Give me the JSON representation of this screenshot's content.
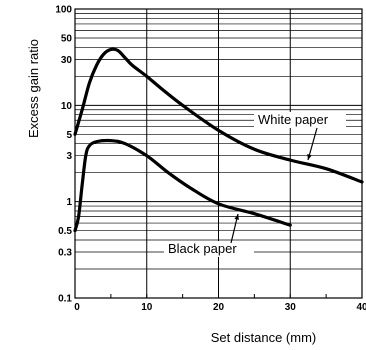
{
  "chart_data": {
    "type": "line",
    "xlabel": "Set distance (mm)",
    "ylabel": "Excess gain ratio",
    "xlim": [
      0,
      40
    ],
    "ylim": [
      0.1,
      100
    ],
    "yscale": "log",
    "grid": true,
    "x_ticks": [
      0,
      10,
      20,
      30,
      40
    ],
    "x_tick_labels": [
      "0",
      "10",
      "20",
      "30",
      "40"
    ],
    "y_ticks": [
      0.1,
      0.3,
      0.5,
      1,
      3,
      5,
      10,
      30,
      50,
      100
    ],
    "y_tick_labels": [
      "0.1",
      "0.3",
      "0.5",
      "1",
      "3",
      "5",
      "10",
      "30",
      "50",
      "100"
    ],
    "series": [
      {
        "name": "White paper",
        "x": [
          0,
          1,
          2,
          3,
          4,
          5,
          6,
          7,
          8,
          10,
          12,
          15,
          20,
          25,
          30,
          35,
          40
        ],
        "y": [
          5,
          9,
          17,
          26,
          34,
          38,
          37,
          31,
          26,
          20,
          15,
          10,
          5.5,
          3.5,
          2.7,
          2.2,
          1.6
        ]
      },
      {
        "name": "Black paper",
        "x": [
          0,
          0.5,
          1,
          1.5,
          2,
          3,
          5,
          7,
          10,
          13,
          16,
          20,
          25,
          30
        ],
        "y": [
          0.5,
          0.7,
          1.5,
          3,
          3.8,
          4.2,
          4.3,
          4,
          3,
          2,
          1.4,
          0.95,
          0.75,
          0.57
        ]
      }
    ],
    "annotations": [
      "White paper",
      "Black paper"
    ]
  }
}
